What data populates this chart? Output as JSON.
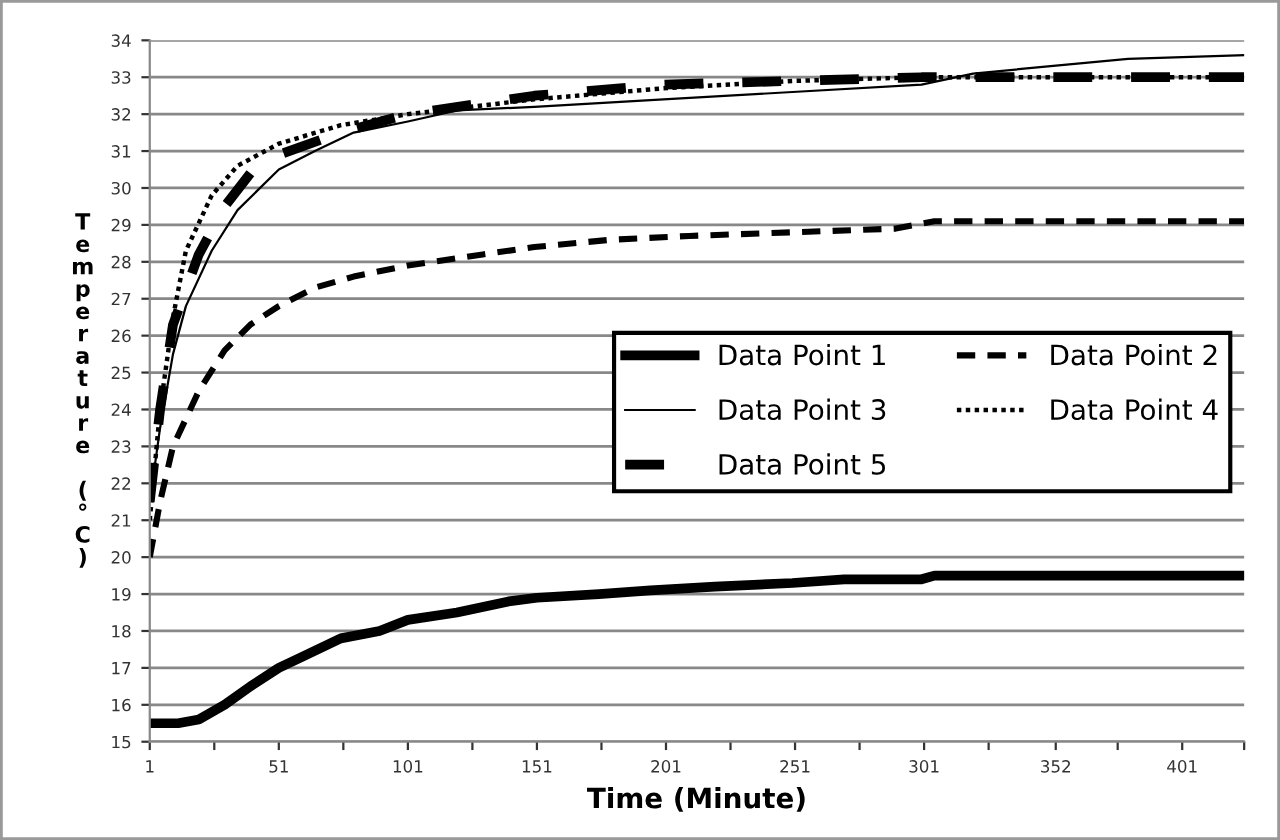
{
  "chart_data": {
    "type": "line",
    "xlabel": "Time (Minute)",
    "ylabel": "Temperature (°C)",
    "xlim": [
      1,
      425
    ],
    "ylim": [
      15,
      34
    ],
    "xticks": [
      1,
      {
        "value": 26,
        "label": null
      },
      51,
      {
        "value": 76,
        "label": null
      },
      101,
      {
        "value": 126,
        "label": null
      },
      151,
      {
        "value": 176,
        "label": null
      },
      201,
      {
        "value": 226,
        "label": null
      },
      251,
      {
        "value": 276,
        "label": null
      },
      301,
      {
        "value": 326,
        "label": null
      },
      352,
      {
        "value": 376,
        "label": null
      },
      401,
      {
        "value": 425,
        "label": null
      }
    ],
    "yticks": [
      15,
      16,
      17,
      18,
      19,
      20,
      21,
      22,
      23,
      24,
      25,
      26,
      27,
      28,
      29,
      30,
      31,
      32,
      33,
      34
    ],
    "grid": "y",
    "legend": "right",
    "marker": "none",
    "series": [
      {
        "name": "Data Point 1",
        "color": "#000000",
        "line_style": "solid",
        "x": [
          1,
          12,
          20,
          30,
          40,
          51,
          60,
          75,
          90,
          101,
          120,
          140,
          151,
          175,
          195,
          220,
          250,
          270,
          300,
          305,
          425
        ],
        "values": [
          15.5,
          15.5,
          15.6,
          16.0,
          16.5,
          17.0,
          17.3,
          17.8,
          18.0,
          18.3,
          18.5,
          18.8,
          18.9,
          19.0,
          19.1,
          19.2,
          19.3,
          19.4,
          19.4,
          19.5,
          19.5
        ]
      },
      {
        "name": "Data Point 2",
        "color": "#000000",
        "line_style": "dashed",
        "x": [
          1,
          5,
          10,
          20,
          30,
          40,
          51,
          65,
          80,
          101,
          130,
          150,
          180,
          210,
          250,
          290,
          305,
          425
        ],
        "values": [
          20.0,
          21.5,
          23.0,
          24.5,
          25.6,
          26.3,
          26.8,
          27.3,
          27.6,
          27.9,
          28.2,
          28.4,
          28.6,
          28.7,
          28.8,
          28.9,
          29.1,
          29.1
        ]
      },
      {
        "name": "Data Point 3",
        "color": "#000000",
        "line_style": "solid",
        "x": [
          1,
          5,
          10,
          15,
          25,
          35,
          51,
          65,
          80,
          101,
          120,
          150,
          200,
          250,
          300,
          320,
          350,
          380,
          425
        ],
        "values": [
          21.5,
          23.5,
          25.5,
          26.8,
          28.3,
          29.4,
          30.5,
          31.0,
          31.5,
          31.8,
          32.1,
          32.2,
          32.4,
          32.6,
          32.8,
          33.1,
          33.3,
          33.5,
          33.6
        ]
      },
      {
        "name": "Data Point 4",
        "color": "#000000",
        "line_style": "dotted",
        "x": [
          1,
          5,
          10,
          15,
          25,
          35,
          51,
          75,
          101,
          150,
          200,
          250,
          300,
          425
        ],
        "values": [
          21.0,
          24.0,
          26.5,
          28.3,
          29.8,
          30.6,
          31.2,
          31.7,
          32.0,
          32.4,
          32.7,
          32.9,
          33.0,
          33.0
        ]
      },
      {
        "name": "Data Point 5",
        "color": "#000000",
        "line_style": "dashed",
        "x": [
          1,
          5,
          10,
          20,
          30,
          40,
          51,
          75,
          101,
          150,
          200,
          250,
          300,
          425
        ],
        "values": [
          21.5,
          24.0,
          26.3,
          28.2,
          29.5,
          30.4,
          30.9,
          31.5,
          32.0,
          32.5,
          32.8,
          32.9,
          33.0,
          33.0
        ]
      }
    ]
  }
}
